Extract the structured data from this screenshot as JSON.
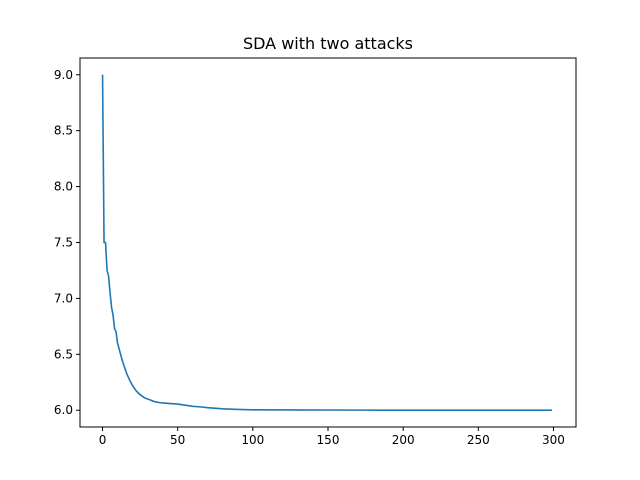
{
  "chart_data": {
    "type": "line",
    "title": "SDA with two attacks",
    "xlabel": "",
    "ylabel": "",
    "xlim": [
      -15,
      315
    ],
    "ylim": [
      5.85,
      9.15
    ],
    "xticks": [
      0,
      50,
      100,
      150,
      200,
      250,
      300
    ],
    "yticks": [
      6.0,
      6.5,
      7.0,
      7.5,
      8.0,
      8.5,
      9.0
    ],
    "grid": false,
    "colors": {
      "line": "#1f77b4",
      "axes": "#000000"
    },
    "series": [
      {
        "x": [
          0,
          1,
          2,
          3,
          4,
          5,
          6,
          7,
          8,
          9,
          10,
          11,
          12,
          13,
          14,
          15,
          16,
          17,
          18,
          20,
          22,
          24,
          26,
          28,
          30,
          32,
          35,
          38,
          40,
          45,
          50,
          55,
          60,
          65,
          70,
          80,
          90,
          100,
          125,
          150,
          175,
          200,
          225,
          250,
          275,
          299
        ],
        "y": [
          9.0,
          7.5,
          7.5,
          7.25,
          7.2,
          7.05,
          6.92,
          6.85,
          6.73,
          6.7,
          6.6,
          6.55,
          6.5,
          6.45,
          6.41,
          6.37,
          6.33,
          6.3,
          6.27,
          6.22,
          6.18,
          6.15,
          6.13,
          6.11,
          6.1,
          6.09,
          6.075,
          6.068,
          6.065,
          6.06,
          6.055,
          6.045,
          6.035,
          6.03,
          6.023,
          6.013,
          6.007,
          6.004,
          6.003,
          6.002,
          6.001,
          6.0,
          6.0,
          6.0,
          6.0,
          6.0
        ]
      }
    ]
  }
}
